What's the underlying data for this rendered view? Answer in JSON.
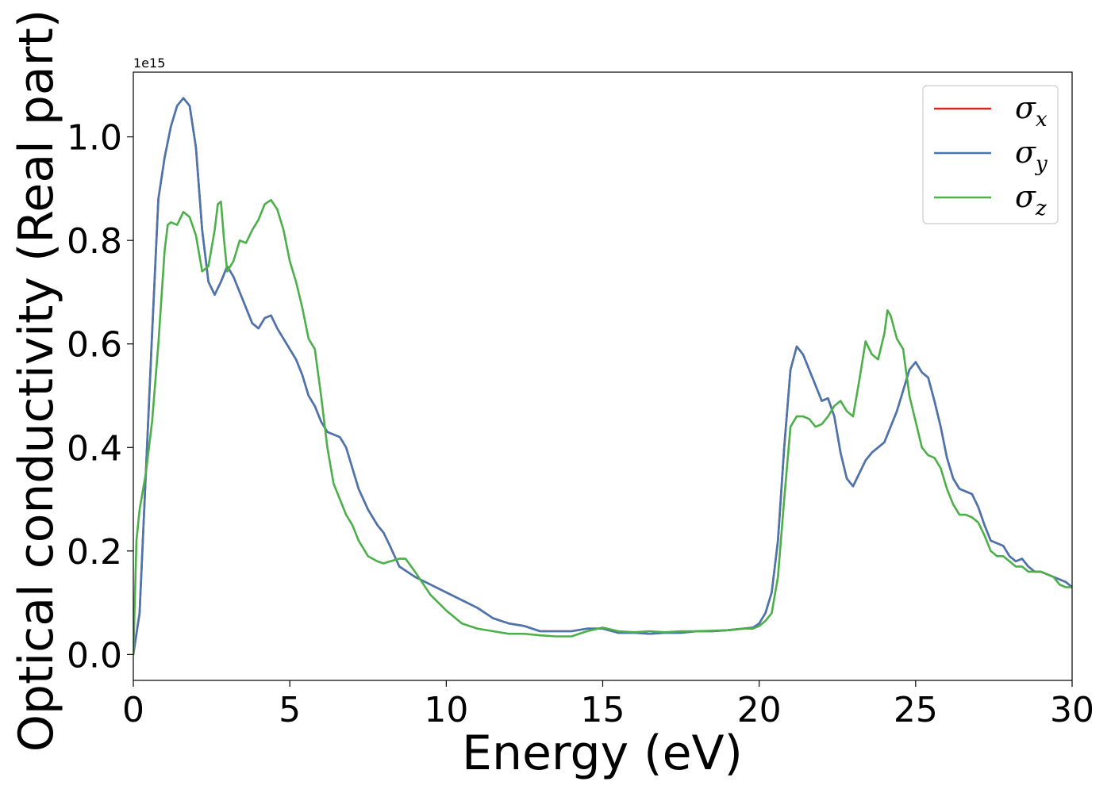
{
  "chart_data": {
    "type": "line",
    "xlabel": "Energy (eV)",
    "ylabel": "Optical conductivity (Real part)",
    "y_offset_label": "1e15",
    "xlim": [
      0,
      30
    ],
    "ylim": [
      -0.05,
      1.125
    ],
    "xticks": [
      0,
      5,
      10,
      15,
      20,
      25,
      30
    ],
    "xtick_labels": [
      "0",
      "5",
      "10",
      "15",
      "20",
      "25",
      "30"
    ],
    "yticks": [
      0.0,
      0.2,
      0.4,
      0.6,
      0.8,
      1.0
    ],
    "ytick_labels": [
      "0.0",
      "0.2",
      "0.4",
      "0.6",
      "0.8",
      "1.0"
    ],
    "grid": false,
    "legend_position": "top-right",
    "series": [
      {
        "name": "σx",
        "name_base": "σ",
        "name_sub": "x",
        "color": "#d62728",
        "x": [
          0,
          0.2,
          0.4,
          0.6,
          0.8,
          1.0,
          1.2,
          1.4,
          1.6,
          1.8,
          2.0,
          2.2,
          2.4,
          2.6,
          2.8,
          3.0,
          3.2,
          3.4,
          3.6,
          3.8,
          4.0,
          4.2,
          4.4,
          4.6,
          4.8,
          5.0,
          5.2,
          5.4,
          5.6,
          5.8,
          6.0,
          6.2,
          6.4,
          6.6,
          6.8,
          7.0,
          7.2,
          7.5,
          7.8,
          8.0,
          8.2,
          8.5,
          9.0,
          9.5,
          10.0,
          10.5,
          11.0,
          11.5,
          12.0,
          12.5,
          13.0,
          13.5,
          14.0,
          14.5,
          15.0,
          15.5,
          16.0,
          16.5,
          17.0,
          17.5,
          18.0,
          18.5,
          19.0,
          19.5,
          19.8,
          20.0,
          20.2,
          20.4,
          20.6,
          20.8,
          21.0,
          21.2,
          21.4,
          21.6,
          21.8,
          22.0,
          22.2,
          22.4,
          22.6,
          22.8,
          23.0,
          23.2,
          23.4,
          23.6,
          23.8,
          24.0,
          24.2,
          24.4,
          24.6,
          24.8,
          25.0,
          25.2,
          25.4,
          25.6,
          25.8,
          26.0,
          26.2,
          26.4,
          26.6,
          26.8,
          27.0,
          27.2,
          27.4,
          27.6,
          27.8,
          28.0,
          28.2,
          28.4,
          28.6,
          28.8,
          29.0,
          29.2,
          29.4,
          29.6,
          29.8,
          30.0
        ],
        "y": [
          0.0,
          0.08,
          0.35,
          0.62,
          0.88,
          0.96,
          1.02,
          1.06,
          1.075,
          1.06,
          0.98,
          0.82,
          0.72,
          0.695,
          0.72,
          0.75,
          0.73,
          0.7,
          0.67,
          0.64,
          0.63,
          0.65,
          0.655,
          0.63,
          0.61,
          0.59,
          0.57,
          0.54,
          0.5,
          0.48,
          0.45,
          0.43,
          0.425,
          0.42,
          0.4,
          0.36,
          0.32,
          0.28,
          0.25,
          0.235,
          0.21,
          0.17,
          0.15,
          0.135,
          0.12,
          0.105,
          0.09,
          0.07,
          0.06,
          0.055,
          0.045,
          0.045,
          0.045,
          0.05,
          0.05,
          0.042,
          0.042,
          0.04,
          0.042,
          0.042,
          0.045,
          0.045,
          0.047,
          0.05,
          0.052,
          0.06,
          0.08,
          0.12,
          0.22,
          0.4,
          0.55,
          0.595,
          0.58,
          0.55,
          0.52,
          0.49,
          0.495,
          0.46,
          0.39,
          0.34,
          0.325,
          0.35,
          0.375,
          0.39,
          0.4,
          0.41,
          0.44,
          0.47,
          0.51,
          0.55,
          0.565,
          0.545,
          0.535,
          0.49,
          0.44,
          0.38,
          0.34,
          0.32,
          0.315,
          0.31,
          0.285,
          0.25,
          0.22,
          0.215,
          0.21,
          0.19,
          0.18,
          0.185,
          0.17,
          0.16,
          0.16,
          0.155,
          0.15,
          0.145,
          0.14,
          0.13
        ]
      },
      {
        "name": "σy",
        "name_base": "σ",
        "name_sub": "y",
        "color": "#4a76b0",
        "x": [
          0,
          0.2,
          0.4,
          0.6,
          0.8,
          1.0,
          1.2,
          1.4,
          1.6,
          1.8,
          2.0,
          2.2,
          2.4,
          2.6,
          2.8,
          3.0,
          3.2,
          3.4,
          3.6,
          3.8,
          4.0,
          4.2,
          4.4,
          4.6,
          4.8,
          5.0,
          5.2,
          5.4,
          5.6,
          5.8,
          6.0,
          6.2,
          6.4,
          6.6,
          6.8,
          7.0,
          7.2,
          7.5,
          7.8,
          8.0,
          8.2,
          8.5,
          9.0,
          9.5,
          10.0,
          10.5,
          11.0,
          11.5,
          12.0,
          12.5,
          13.0,
          13.5,
          14.0,
          14.5,
          15.0,
          15.5,
          16.0,
          16.5,
          17.0,
          17.5,
          18.0,
          18.5,
          19.0,
          19.5,
          19.8,
          20.0,
          20.2,
          20.4,
          20.6,
          20.8,
          21.0,
          21.2,
          21.4,
          21.6,
          21.8,
          22.0,
          22.2,
          22.4,
          22.6,
          22.8,
          23.0,
          23.2,
          23.4,
          23.6,
          23.8,
          24.0,
          24.2,
          24.4,
          24.6,
          24.8,
          25.0,
          25.2,
          25.4,
          25.6,
          25.8,
          26.0,
          26.2,
          26.4,
          26.6,
          26.8,
          27.0,
          27.2,
          27.4,
          27.6,
          27.8,
          28.0,
          28.2,
          28.4,
          28.6,
          28.8,
          29.0,
          29.2,
          29.4,
          29.6,
          29.8,
          30.0
        ],
        "y": [
          0.0,
          0.08,
          0.35,
          0.62,
          0.88,
          0.96,
          1.02,
          1.06,
          1.075,
          1.06,
          0.98,
          0.82,
          0.72,
          0.695,
          0.72,
          0.75,
          0.73,
          0.7,
          0.67,
          0.64,
          0.63,
          0.65,
          0.655,
          0.63,
          0.61,
          0.59,
          0.57,
          0.54,
          0.5,
          0.48,
          0.45,
          0.43,
          0.425,
          0.42,
          0.4,
          0.36,
          0.32,
          0.28,
          0.25,
          0.235,
          0.21,
          0.17,
          0.15,
          0.135,
          0.12,
          0.105,
          0.09,
          0.07,
          0.06,
          0.055,
          0.045,
          0.045,
          0.045,
          0.05,
          0.05,
          0.042,
          0.042,
          0.04,
          0.042,
          0.042,
          0.045,
          0.045,
          0.047,
          0.05,
          0.052,
          0.06,
          0.08,
          0.12,
          0.22,
          0.4,
          0.55,
          0.595,
          0.58,
          0.55,
          0.52,
          0.49,
          0.495,
          0.46,
          0.39,
          0.34,
          0.325,
          0.35,
          0.375,
          0.39,
          0.4,
          0.41,
          0.44,
          0.47,
          0.51,
          0.55,
          0.565,
          0.545,
          0.535,
          0.49,
          0.44,
          0.38,
          0.34,
          0.32,
          0.315,
          0.31,
          0.285,
          0.25,
          0.22,
          0.215,
          0.21,
          0.19,
          0.18,
          0.185,
          0.17,
          0.16,
          0.16,
          0.155,
          0.15,
          0.145,
          0.14,
          0.13
        ]
      },
      {
        "name": "σz",
        "name_base": "σ",
        "name_sub": "z",
        "color": "#4daf4a",
        "x": [
          0,
          0.1,
          0.2,
          0.4,
          0.6,
          0.8,
          1.0,
          1.1,
          1.2,
          1.4,
          1.6,
          1.8,
          2.0,
          2.2,
          2.4,
          2.6,
          2.7,
          2.8,
          2.9,
          3.0,
          3.2,
          3.4,
          3.6,
          3.8,
          4.0,
          4.2,
          4.4,
          4.6,
          4.8,
          5.0,
          5.2,
          5.4,
          5.6,
          5.8,
          6.0,
          6.2,
          6.4,
          6.6,
          6.8,
          7.0,
          7.2,
          7.5,
          7.8,
          8.0,
          8.2,
          8.5,
          8.7,
          9.0,
          9.5,
          10.0,
          10.5,
          11.0,
          11.5,
          12.0,
          12.5,
          13.0,
          13.5,
          14.0,
          14.5,
          15.0,
          15.5,
          16.0,
          16.5,
          17.0,
          17.5,
          18.0,
          18.5,
          19.0,
          19.5,
          19.8,
          20.0,
          20.2,
          20.4,
          20.6,
          20.8,
          21.0,
          21.2,
          21.4,
          21.6,
          21.8,
          22.0,
          22.2,
          22.4,
          22.6,
          22.8,
          23.0,
          23.2,
          23.4,
          23.6,
          23.8,
          24.0,
          24.1,
          24.2,
          24.4,
          24.6,
          24.8,
          25.0,
          25.2,
          25.4,
          25.6,
          25.8,
          26.0,
          26.2,
          26.4,
          26.6,
          26.8,
          27.0,
          27.2,
          27.4,
          27.6,
          27.8,
          28.0,
          28.2,
          28.4,
          28.6,
          28.8,
          29.0,
          29.2,
          29.4,
          29.6,
          29.8,
          30.0
        ],
        "y": [
          0.0,
          0.22,
          0.28,
          0.35,
          0.45,
          0.6,
          0.78,
          0.83,
          0.835,
          0.83,
          0.855,
          0.845,
          0.81,
          0.74,
          0.75,
          0.82,
          0.87,
          0.875,
          0.8,
          0.74,
          0.76,
          0.8,
          0.795,
          0.82,
          0.84,
          0.87,
          0.878,
          0.86,
          0.82,
          0.76,
          0.72,
          0.67,
          0.61,
          0.59,
          0.5,
          0.4,
          0.33,
          0.3,
          0.27,
          0.25,
          0.22,
          0.19,
          0.18,
          0.176,
          0.18,
          0.185,
          0.185,
          0.16,
          0.115,
          0.085,
          0.06,
          0.05,
          0.045,
          0.04,
          0.04,
          0.037,
          0.035,
          0.035,
          0.045,
          0.052,
          0.045,
          0.043,
          0.045,
          0.043,
          0.045,
          0.045,
          0.046,
          0.047,
          0.05,
          0.05,
          0.055,
          0.065,
          0.08,
          0.15,
          0.3,
          0.44,
          0.46,
          0.46,
          0.455,
          0.44,
          0.445,
          0.46,
          0.48,
          0.49,
          0.47,
          0.46,
          0.53,
          0.605,
          0.58,
          0.57,
          0.62,
          0.665,
          0.655,
          0.61,
          0.59,
          0.5,
          0.45,
          0.4,
          0.385,
          0.38,
          0.36,
          0.32,
          0.29,
          0.27,
          0.27,
          0.265,
          0.255,
          0.23,
          0.2,
          0.19,
          0.19,
          0.18,
          0.17,
          0.17,
          0.16,
          0.16,
          0.16,
          0.155,
          0.15,
          0.135,
          0.13,
          0.13
        ]
      }
    ]
  }
}
